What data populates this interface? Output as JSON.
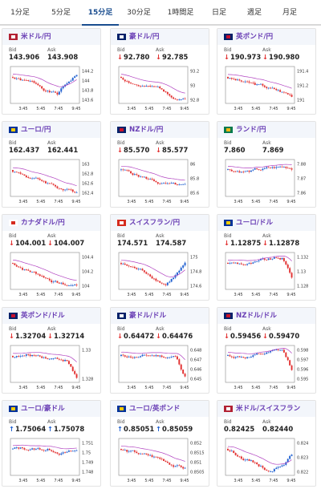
{
  "tabs": [
    "1分足",
    "5分足",
    "15分足",
    "30分足",
    "1時間足",
    "日足",
    "週足",
    "月足"
  ],
  "active_tab": 2,
  "labels": {
    "bid": "Bid",
    "ask": "Ask"
  },
  "colors": {
    "up": "#2060d0",
    "down": "#e23030",
    "ma": "#b040c0",
    "tab_active": "#1a4d8f",
    "title": "#6a3fb5"
  },
  "x_ticks": [
    "3:45",
    "5:45",
    "7:45",
    "9:45"
  ],
  "cards": [
    {
      "title": "米ドル/円",
      "flag": "us-jp-flag",
      "bid": "143.906",
      "ask": "143.908",
      "dir": "",
      "y_ticks": [
        "144.2",
        "144",
        "143.8",
        "143.6"
      ],
      "trend": "dip-recover",
      "seed": 1
    },
    {
      "title": "豪ドル/円",
      "flag": "au-jp-flag",
      "bid": "92.780",
      "ask": "92.785",
      "dir": "down",
      "y_ticks": [
        "93.2",
        "93",
        "92.8"
      ],
      "trend": "down",
      "seed": 2
    },
    {
      "title": "英ポンド/円",
      "flag": "gb-jp-flag",
      "bid": "190.973",
      "ask": "190.980",
      "dir": "down",
      "y_ticks": [
        "191.4",
        "191.2",
        "191"
      ],
      "trend": "down",
      "seed": 3
    },
    {
      "title": "ユーロ/円",
      "flag": "eu-jp-flag",
      "bid": "162.437",
      "ask": "162.441",
      "dir": "",
      "y_ticks": [
        "163",
        "162.8",
        "162.6",
        "162.4"
      ],
      "trend": "down",
      "seed": 4
    },
    {
      "title": "NZドル/円",
      "flag": "nz-jp-flag",
      "bid": "85.570",
      "ask": "85.577",
      "dir": "down",
      "y_ticks": [
        "86",
        "85.8",
        "85.6"
      ],
      "trend": "down",
      "seed": 5
    },
    {
      "title": "ランド/円",
      "flag": "za-jp-flag",
      "bid": "7.860",
      "ask": "7.869",
      "dir": "",
      "y_ticks": [
        "7.88",
        "7.87",
        "7.86"
      ],
      "trend": "flat",
      "seed": 6
    },
    {
      "title": "カナダドル/円",
      "flag": "ca-jp-flag",
      "bid": "104.001",
      "ask": "104.007",
      "dir": "down",
      "y_ticks": [
        "104.4",
        "104.2",
        "104"
      ],
      "trend": "down",
      "seed": 7
    },
    {
      "title": "スイスフラン/円",
      "flag": "ch-jp-flag",
      "bid": "174.571",
      "ask": "174.587",
      "dir": "",
      "y_ticks": [
        "175",
        "174.8",
        "174.6"
      ],
      "trend": "dip-recover",
      "seed": 8
    },
    {
      "title": "ユーロ/ドル",
      "flag": "eu-us-flag",
      "bid": "1.12875",
      "ask": "1.12878",
      "dir": "down",
      "y_ticks": [
        "1.132",
        "1.13",
        "1.128"
      ],
      "trend": "flat-drop",
      "seed": 9
    },
    {
      "title": "英ポンド/ドル",
      "flag": "gb-us-flag",
      "bid": "1.32704",
      "ask": "1.32714",
      "dir": "down",
      "y_ticks": [
        "1.33",
        "1.328"
      ],
      "trend": "flat-drop",
      "seed": 10
    },
    {
      "title": "豪ドル/ドル",
      "flag": "au-us-flag",
      "bid": "0.64472",
      "ask": "0.64476",
      "dir": "down",
      "y_ticks": [
        "0.648",
        "0.647",
        "0.646",
        "0.645"
      ],
      "trend": "flat-drop",
      "seed": 11
    },
    {
      "title": "NZドル/ドル",
      "flag": "nz-us-flag",
      "bid": "0.59456",
      "ask": "0.59470",
      "dir": "down",
      "y_ticks": [
        "0.598",
        "0.597",
        "0.596",
        "0.595"
      ],
      "trend": "flat-drop",
      "seed": 12
    },
    {
      "title": "ユーロ/豪ドル",
      "flag": "eu-au-flag",
      "bid": "1.75064",
      "ask": "1.75078",
      "dir": "up",
      "y_ticks": [
        "1.751",
        "1.75",
        "1.749",
        "1.748"
      ],
      "trend": "flat",
      "seed": 13
    },
    {
      "title": "ユーロ/英ポンド",
      "flag": "eu-gb-flag",
      "bid": "0.85051",
      "ask": "0.85059",
      "dir": "up",
      "y_ticks": [
        "0.852",
        "0.8515",
        "0.851",
        "0.8505"
      ],
      "trend": "down",
      "seed": 14
    },
    {
      "title": "米ドル/スイスフラン",
      "flag": "us-ch-flag",
      "bid": "0.82425",
      "ask": "0.82440",
      "dir": "",
      "y_ticks": [
        "0.824",
        "0.823",
        "0.822"
      ],
      "trend": "dip-recover",
      "seed": 15
    }
  ]
}
